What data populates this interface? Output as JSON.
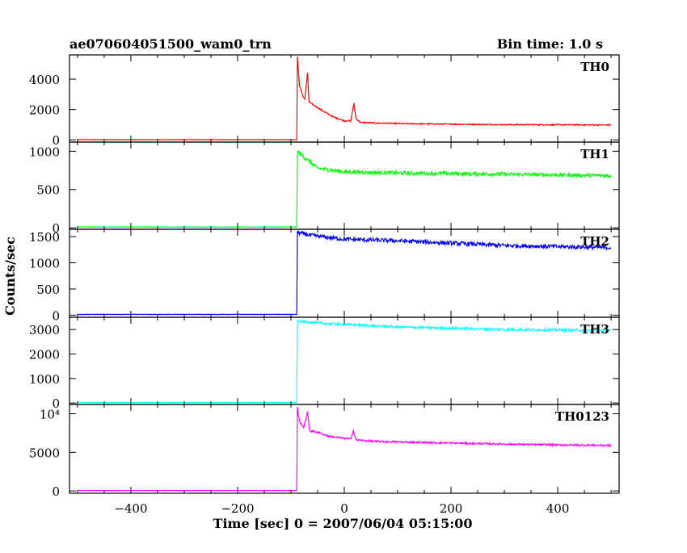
{
  "chart_data": {
    "type": "line",
    "title_left": "ae070604051500_wam0_trn",
    "title_right": "Bin time: 1.0 s",
    "xlabel": "Time [sec] 0 = 2007/06/04 05:15:00",
    "ylabel": "Counts/sec",
    "xlim": [
      -515,
      515
    ],
    "xticks": [
      -400,
      -200,
      0,
      200,
      400
    ],
    "x_tick_labels": [
      "−400",
      "−200",
      "0",
      "200",
      "400"
    ],
    "x_start": -500,
    "x_end": 500,
    "trigger_time": -88,
    "panels": [
      {
        "name": "TH0",
        "color": "#ff0000",
        "ylim": [
          -150,
          5600
        ],
        "yticks": [
          0,
          2000,
          4000
        ],
        "y_tick_labels": [
          "0",
          "2000",
          "4000"
        ],
        "baseline": 10,
        "noise": 40,
        "profile": [
          [
            -88,
            5500
          ],
          [
            -84,
            3600
          ],
          [
            -78,
            2900
          ],
          [
            -74,
            2700
          ],
          [
            -69,
            4400
          ],
          [
            -66,
            2500
          ],
          [
            -58,
            2300
          ],
          [
            -40,
            1900
          ],
          [
            -20,
            1500
          ],
          [
            0,
            1250
          ],
          [
            12,
            1250
          ],
          [
            18,
            2400
          ],
          [
            22,
            1400
          ],
          [
            30,
            1150
          ],
          [
            60,
            1100
          ],
          [
            150,
            1050
          ],
          [
            300,
            1000
          ],
          [
            500,
            980
          ]
        ]
      },
      {
        "name": "TH1",
        "color": "#00ff00",
        "ylim": [
          -20,
          1120
        ],
        "yticks": [
          0,
          500,
          1000
        ],
        "y_tick_labels": [
          "0",
          "500",
          "1000"
        ],
        "baseline": 10,
        "noise": 25,
        "profile": [
          [
            -88,
            1000
          ],
          [
            -75,
            920
          ],
          [
            -50,
            780
          ],
          [
            0,
            730
          ],
          [
            100,
            715
          ],
          [
            300,
            700
          ],
          [
            500,
            680
          ]
        ]
      },
      {
        "name": "TH2",
        "color": "#0000ff",
        "ylim": [
          -40,
          1640
        ],
        "yticks": [
          0,
          500,
          1000,
          1500
        ],
        "y_tick_labels": [
          "0",
          "500",
          "1000",
          "1500"
        ],
        "baseline": 15,
        "noise": 40,
        "profile": [
          [
            -88,
            1580
          ],
          [
            -60,
            1520
          ],
          [
            0,
            1450
          ],
          [
            100,
            1420
          ],
          [
            300,
            1330
          ],
          [
            500,
            1290
          ]
        ]
      },
      {
        "name": "TH3",
        "color": "#00ffff",
        "ylim": [
          -60,
          3500
        ],
        "yticks": [
          0,
          1000,
          2000,
          3000
        ],
        "y_tick_labels": [
          "0",
          "1000",
          "2000",
          "3000"
        ],
        "baseline": 20,
        "noise": 50,
        "profile": [
          [
            -88,
            3350
          ],
          [
            -40,
            3250
          ],
          [
            100,
            3100
          ],
          [
            300,
            3000
          ],
          [
            500,
            2960
          ]
        ]
      },
      {
        "name": "TH0123",
        "color": "#ff00ff",
        "ylim": [
          -300,
          11200
        ],
        "yticks": [
          0,
          5000,
          10000
        ],
        "y_tick_labels": [
          "0",
          "5000",
          "10⁴"
        ],
        "baseline": 50,
        "noise": 120,
        "profile": [
          [
            -88,
            10800
          ],
          [
            -84,
            9000
          ],
          [
            -76,
            8200
          ],
          [
            -69,
            10200
          ],
          [
            -65,
            7800
          ],
          [
            -50,
            7600
          ],
          [
            -30,
            7100
          ],
          [
            0,
            6800
          ],
          [
            12,
            6700
          ],
          [
            17,
            7900
          ],
          [
            22,
            6600
          ],
          [
            60,
            6400
          ],
          [
            200,
            6200
          ],
          [
            350,
            6000
          ],
          [
            500,
            5900
          ]
        ]
      }
    ]
  }
}
